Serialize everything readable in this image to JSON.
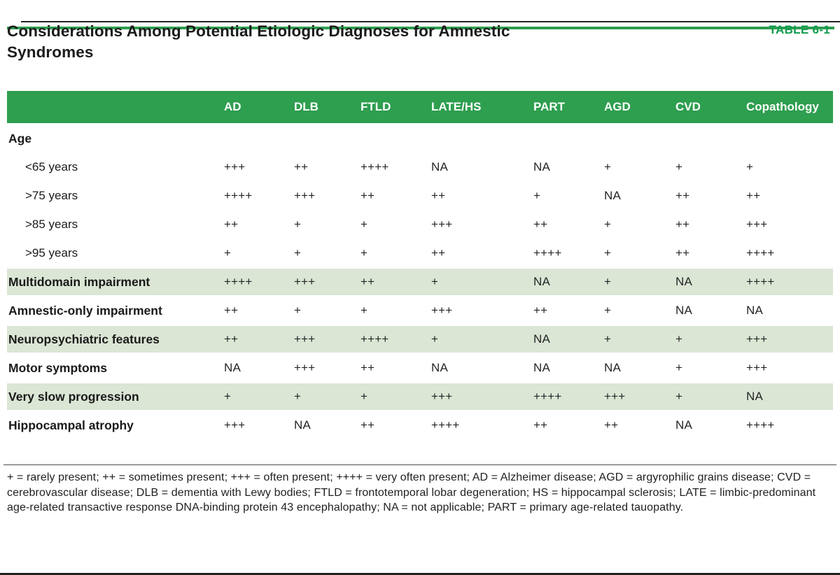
{
  "header": {
    "title": "Considerations Among Potential Etiologic Diagnoses for Amnestic Syndromes",
    "table_label": "TABLE 6-1"
  },
  "colors": {
    "header_green": "#2e9e4f",
    "accent_green": "#0f9c4d",
    "row_shade": "#dbe6d5",
    "text": "#1a1a1a"
  },
  "table": {
    "columns": [
      "AD",
      "DLB",
      "FTLD",
      "LATE/HS",
      "PART",
      "AGD",
      "CVD",
      "Copathology"
    ],
    "rows": [
      {
        "label": "Age",
        "type": "section",
        "shaded": false,
        "values": [
          "",
          "",
          "",
          "",
          "",
          "",
          "",
          ""
        ]
      },
      {
        "label": "<65 years",
        "type": "sub",
        "shaded": false,
        "values": [
          "+++",
          "++",
          "++++",
          "NA",
          "NA",
          "+",
          "+",
          "+"
        ]
      },
      {
        "label": ">75 years",
        "type": "sub",
        "shaded": false,
        "values": [
          "++++",
          "+++",
          "++",
          "++",
          "+",
          "NA",
          "++",
          "++"
        ]
      },
      {
        "label": ">85 years",
        "type": "sub",
        "shaded": false,
        "values": [
          "++",
          "+",
          "+",
          "+++",
          "++",
          "+",
          "++",
          "+++"
        ]
      },
      {
        "label": ">95 years",
        "type": "sub",
        "shaded": false,
        "values": [
          "+",
          "+",
          "+",
          "++",
          "++++",
          "+",
          "++",
          "++++"
        ]
      },
      {
        "label": "Multidomain impairment",
        "type": "category",
        "shaded": true,
        "values": [
          "++++",
          "+++",
          "++",
          "+",
          "NA",
          "+",
          "NA",
          "++++"
        ]
      },
      {
        "label": "Amnestic-only impairment",
        "type": "category",
        "shaded": false,
        "values": [
          "++",
          "+",
          "+",
          "+++",
          "++",
          "+",
          "NA",
          "NA"
        ]
      },
      {
        "label": "Neuropsychiatric features",
        "type": "category",
        "shaded": true,
        "values": [
          "++",
          "+++",
          "++++",
          "+",
          "NA",
          "+",
          "+",
          "+++"
        ]
      },
      {
        "label": "Motor symptoms",
        "type": "category",
        "shaded": false,
        "values": [
          "NA",
          "+++",
          "++",
          "NA",
          "NA",
          "NA",
          "+",
          "+++"
        ]
      },
      {
        "label": "Very slow progression",
        "type": "category",
        "shaded": true,
        "values": [
          "+",
          "+",
          "+",
          "+++",
          "++++",
          "+++",
          "+",
          "NA"
        ]
      },
      {
        "label": "Hippocampal atrophy",
        "type": "category",
        "shaded": false,
        "values": [
          "+++",
          "NA",
          "++",
          "++++",
          "++",
          "++",
          "NA",
          "++++"
        ]
      }
    ]
  },
  "footnote": "+ = rarely present; ++ = sometimes present; +++ = often present; ++++ = very often present; AD = Alzheimer disease; AGD = argyrophilic grains disease; CVD = cerebrovascular disease; DLB = dementia with Lewy bodies; FTLD = frontotemporal lobar degeneration; HS = hippocampal sclerosis; LATE = limbic-predominant age-related transactive response DNA-binding protein 43 encephalopathy; NA = not applicable; PART = primary age-related tauopathy."
}
